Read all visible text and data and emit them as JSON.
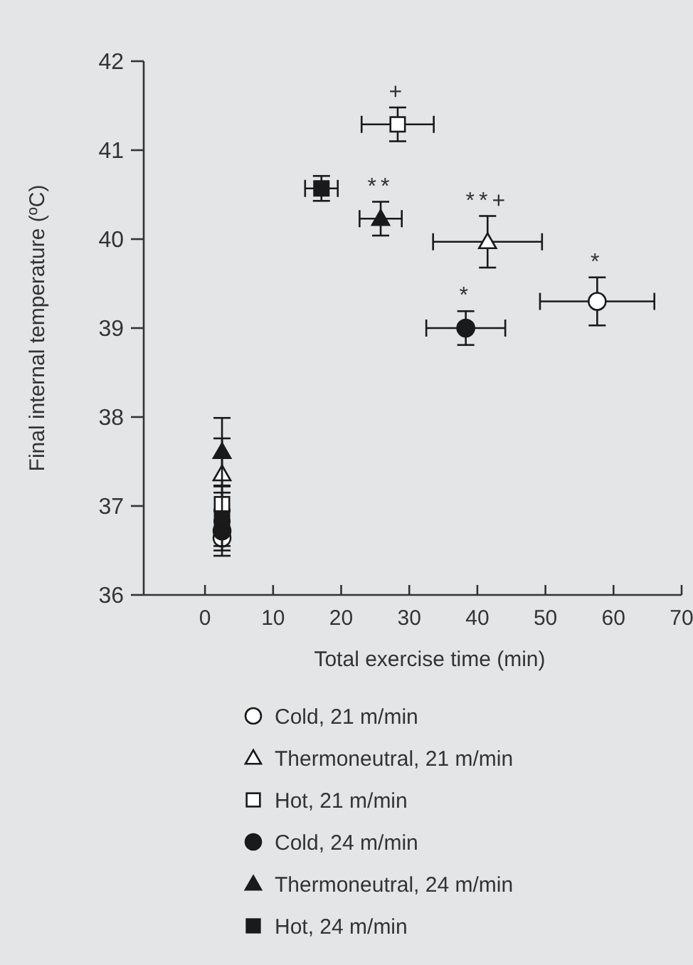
{
  "chart_data": {
    "type": "scatter",
    "xlabel": "Total exercise time (min)",
    "ylabel": "Final internal temperature (ºC)",
    "xlim": [
      -9,
      70
    ],
    "ylim": [
      36,
      42
    ],
    "xticks": [
      0,
      10,
      20,
      30,
      40,
      50,
      60,
      70
    ],
    "yticks": [
      36,
      37,
      38,
      39,
      40,
      41,
      42
    ],
    "grid": false,
    "legend": "bottom",
    "series": [
      {
        "name": "Cold, 21 m/min",
        "color": "#ffffff",
        "marker": "circle",
        "x": [
          2.5,
          57.6
        ],
        "values": [
          36.64,
          39.3
        ],
        "errors": [
          0.2,
          0.27
        ],
        "xerrors": [
          null,
          8.4
        ]
      },
      {
        "name": "Thermoneutral, 21 m/min",
        "color": "#ffffff",
        "marker": "triangle",
        "x": [
          2.5,
          41.5
        ],
        "values": [
          37.36,
          39.97
        ],
        "errors": [
          0.4,
          0.29
        ],
        "xerrors": [
          null,
          8.0
        ]
      },
      {
        "name": "Hot, 21 m/min",
        "color": "#ffffff",
        "marker": "square",
        "x": [
          2.5,
          28.3
        ],
        "values": [
          37.02,
          41.29
        ],
        "errors": [
          0.2,
          0.19
        ],
        "xerrors": [
          null,
          5.3
        ]
      },
      {
        "name": "Cold, 24 m/min",
        "color": "#1a1a1a",
        "marker": "circle",
        "x": [
          2.5,
          38.3
        ],
        "values": [
          36.72,
          39.0
        ],
        "errors": [
          0.22,
          0.19
        ],
        "xerrors": [
          null,
          5.8
        ]
      },
      {
        "name": "Thermoneutral, 24 m/min",
        "color": "#1a1a1a",
        "marker": "triangle",
        "x": [
          2.5,
          25.8
        ],
        "values": [
          37.61,
          40.23
        ],
        "errors": [
          0.38,
          0.19
        ],
        "xerrors": [
          null,
          3.1
        ]
      },
      {
        "name": "Hot, 24 m/min",
        "color": "#1a1a1a",
        "marker": "square",
        "x": [
          2.5,
          17.1
        ],
        "values": [
          36.85,
          40.57
        ],
        "errors": [
          0.3,
          0.14
        ],
        "xerrors": [
          null,
          2.4
        ]
      }
    ],
    "annotations": [
      {
        "text": "+",
        "x": 28.3,
        "y": 41.29
      },
      {
        "text": "**",
        "x": 25.8,
        "y": 40.23
      },
      {
        "text": "**+",
        "x": 41.5,
        "y": 39.97
      },
      {
        "text": "*",
        "x": 38.3,
        "y": 39.0
      },
      {
        "text": "*",
        "x": 57.6,
        "y": 39.3
      }
    ]
  }
}
